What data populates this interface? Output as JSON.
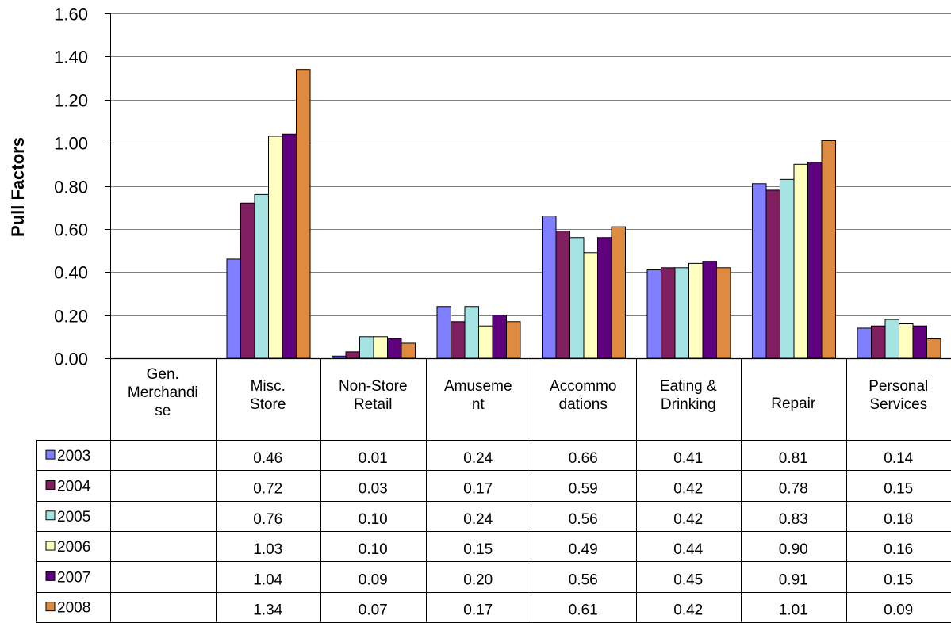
{
  "chart_data": {
    "type": "bar",
    "title": "",
    "xlabel": "",
    "ylabel": "Pull Factors",
    "ylim": [
      0,
      1.6
    ],
    "y_ticks": [
      "0.00",
      "0.20",
      "0.40",
      "0.60",
      "0.80",
      "1.00",
      "1.20",
      "1.40",
      "1.60"
    ],
    "grid": true,
    "legend": "data-table-left",
    "categories": [
      [
        "Gen.",
        "Merchandi",
        "se"
      ],
      [
        "Misc.",
        "Store"
      ],
      [
        "Non-Store",
        "Retail"
      ],
      [
        "Amuseme",
        "nt"
      ],
      [
        "Accommo",
        "dations"
      ],
      [
        "Eating &",
        "Drinking"
      ],
      [
        "Repair"
      ],
      [
        "Personal",
        "Services"
      ]
    ],
    "series": [
      {
        "name": "2003",
        "color": "#7f7fff",
        "values": [
          null,
          0.46,
          0.01,
          0.24,
          0.66,
          0.41,
          0.81,
          0.14
        ],
        "labels": [
          "",
          "0.46",
          "0.01",
          "0.24",
          "0.66",
          "0.41",
          "0.81",
          "0.14"
        ]
      },
      {
        "name": "2004",
        "color": "#7f1f5f",
        "values": [
          null,
          0.72,
          0.03,
          0.17,
          0.59,
          0.42,
          0.78,
          0.15
        ],
        "labels": [
          "",
          "0.72",
          "0.03",
          "0.17",
          "0.59",
          "0.42",
          "0.78",
          "0.15"
        ]
      },
      {
        "name": "2005",
        "color": "#a6e3e3",
        "values": [
          null,
          0.76,
          0.1,
          0.24,
          0.56,
          0.42,
          0.83,
          0.18
        ],
        "labels": [
          "",
          "0.76",
          "0.10",
          "0.24",
          "0.56",
          "0.42",
          "0.83",
          "0.18"
        ]
      },
      {
        "name": "2006",
        "color": "#ffffc0",
        "values": [
          null,
          1.03,
          0.1,
          0.15,
          0.49,
          0.44,
          0.9,
          0.16
        ],
        "labels": [
          "",
          "1.03",
          "0.10",
          "0.15",
          "0.49",
          "0.44",
          "0.90",
          "0.16"
        ]
      },
      {
        "name": "2007",
        "color": "#5f007f",
        "values": [
          null,
          1.04,
          0.09,
          0.2,
          0.56,
          0.45,
          0.91,
          0.15
        ],
        "labels": [
          "",
          "1.04",
          "0.09",
          "0.20",
          "0.56",
          "0.45",
          "0.91",
          "0.15"
        ]
      },
      {
        "name": "2008",
        "color": "#de8a40",
        "values": [
          null,
          1.34,
          0.07,
          0.17,
          0.61,
          0.42,
          1.01,
          0.09
        ],
        "labels": [
          "",
          "1.34",
          "0.07",
          "0.17",
          "0.61",
          "0.42",
          "1.01",
          "0.09"
        ]
      }
    ]
  }
}
